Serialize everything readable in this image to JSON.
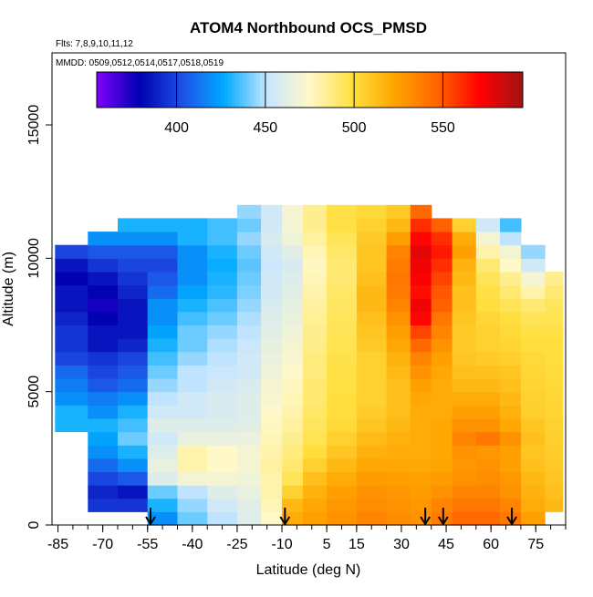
{
  "chart_data": {
    "type": "heatmap",
    "title": "ATOM4 Northbound OCS_PMSD",
    "annotations": [
      "Flts: 7,8,9,10,11,12",
      "MMDD: 0509,0512,0514,0517,0518,0519"
    ],
    "xlabel": "Latitude (deg N)",
    "ylabel": "Altitude (m)",
    "xlim": [
      -87,
      85
    ],
    "ylim": [
      0,
      17700
    ],
    "x_ticks": [
      -85,
      -70,
      -55,
      -40,
      -25,
      -10,
      5,
      15,
      30,
      45,
      60,
      75
    ],
    "x_tick_labels": [
      "-85",
      "-70",
      "-55",
      "-40",
      "-25",
      "-10",
      "5",
      "15",
      "30",
      "45",
      "60",
      "75"
    ],
    "y_ticks": [
      0,
      5000,
      10000,
      15000
    ],
    "y_tick_labels": [
      "0",
      "5000",
      "10000",
      "15000"
    ],
    "colorbar": {
      "range": [
        355,
        595
      ],
      "ticks": [
        400,
        450,
        500,
        550
      ],
      "tick_labels": [
        "400",
        "450",
        "500",
        "550"
      ],
      "colors": [
        "#7f00ff",
        "#0000b0",
        "#1e50e6",
        "#00aaff",
        "#c8e6ff",
        "#fff8c8",
        "#ffe040",
        "#ffa500",
        "#ff6400",
        "#ff0000",
        "#a01414"
      ]
    },
    "arrow_latitudes": [
      -54,
      -9,
      38,
      44,
      67
    ],
    "altitude_bins_m": [
      0,
      500,
      1000,
      1500,
      2000,
      2500,
      3000,
      3500,
      4000,
      4500,
      5000,
      5500,
      6000,
      6500,
      7000,
      7500,
      8000,
      8500,
      9000,
      9500,
      10000,
      10500,
      11000,
      11500,
      12000
    ],
    "columns": [
      {
        "lat": [
          -86,
          -75
        ],
        "alt": [
          3500,
          10500
        ],
        "values": [
          0,
          0,
          0,
          0,
          0,
          0,
          0,
          430,
          430,
          420,
          415,
          410,
          400,
          395,
          395,
          390,
          385,
          385,
          380,
          385,
          400,
          0,
          0,
          0,
          0
        ]
      },
      {
        "lat": [
          -75,
          -65
        ],
        "alt": [
          500,
          11200
        ],
        "values": [
          0,
          395,
          390,
          400,
          410,
          420,
          425,
          430,
          420,
          415,
          405,
          400,
          395,
          385,
          385,
          380,
          375,
          380,
          385,
          395,
          405,
          420,
          0,
          0,
          0
        ]
      },
      {
        "lat": [
          -65,
          -55
        ],
        "alt": [
          0,
          11800
        ],
        "values": [
          0,
          395,
          385,
          405,
          420,
          430,
          440,
          435,
          430,
          420,
          410,
          405,
          400,
          390,
          385,
          385,
          385,
          390,
          395,
          400,
          405,
          420,
          430,
          0,
          0
        ]
      },
      {
        "lat": [
          -55,
          -45
        ],
        "alt": [
          0,
          11800
        ],
        "values": [
          420,
          430,
          440,
          460,
          465,
          460,
          455,
          460,
          455,
          450,
          445,
          440,
          435,
          430,
          425,
          420,
          420,
          410,
          405,
          400,
          405,
          420,
          430,
          0,
          0
        ]
      },
      {
        "lat": [
          -45,
          -35
        ],
        "alt": [
          0,
          11800
        ],
        "values": [
          440,
          445,
          450,
          470,
          480,
          480,
          465,
          460,
          455,
          455,
          450,
          450,
          445,
          440,
          440,
          435,
          430,
          425,
          420,
          420,
          420,
          430,
          430,
          0,
          0
        ]
      },
      {
        "lat": [
          -35,
          -25
        ],
        "alt": [
          0,
          12100
        ],
        "values": [
          450,
          455,
          460,
          470,
          475,
          475,
          465,
          460,
          458,
          458,
          455,
          452,
          450,
          448,
          445,
          440,
          436,
          432,
          430,
          428,
          430,
          435,
          435,
          0,
          0
        ]
      },
      {
        "lat": [
          -25,
          -17
        ],
        "alt": [
          0,
          12400
        ],
        "values": [
          460,
          462,
          465,
          468,
          470,
          470,
          466,
          462,
          460,
          460,
          458,
          455,
          455,
          452,
          450,
          448,
          445,
          442,
          440,
          438,
          440,
          445,
          440,
          445,
          0
        ]
      },
      {
        "lat": [
          -17,
          -10
        ],
        "alt": [
          0,
          12400
        ],
        "values": [
          475,
          478,
          480,
          480,
          482,
          480,
          478,
          476,
          474,
          472,
          470,
          468,
          466,
          464,
          462,
          460,
          458,
          456,
          455,
          453,
          455,
          458,
          455,
          455,
          0
        ]
      },
      {
        "lat": [
          -10,
          -3
        ],
        "alt": [
          0,
          12400
        ],
        "values": [
          520,
          515,
          505,
          495,
          490,
          488,
          485,
          482,
          480,
          478,
          476,
          475,
          472,
          470,
          468,
          466,
          464,
          462,
          460,
          458,
          462,
          468,
          470,
          470,
          0
        ]
      },
      {
        "lat": [
          -3,
          5
        ],
        "alt": [
          0,
          12400
        ],
        "values": [
          525,
          522,
          518,
          512,
          505,
          500,
          496,
          494,
          492,
          490,
          490,
          488,
          488,
          486,
          485,
          484,
          482,
          480,
          478,
          476,
          478,
          482,
          485,
          485,
          0
        ]
      },
      {
        "lat": [
          5,
          15
        ],
        "alt": [
          0,
          12400
        ],
        "values": [
          530,
          528,
          525,
          520,
          515,
          510,
          505,
          502,
          500,
          500,
          498,
          498,
          497,
          496,
          495,
          494,
          493,
          492,
          490,
          490,
          492,
          495,
          498,
          498,
          0
        ]
      },
      {
        "lat": [
          15,
          25
        ],
        "alt": [
          0,
          12400
        ],
        "values": [
          535,
          532,
          530,
          526,
          522,
          518,
          514,
          510,
          507,
          505,
          505,
          505,
          505,
          508,
          510,
          512,
          515,
          515,
          512,
          510,
          510,
          508,
          505,
          502,
          0
        ]
      },
      {
        "lat": [
          25,
          33
        ],
        "alt": [
          0,
          12400
        ],
        "values": [
          532,
          530,
          528,
          525,
          522,
          520,
          518,
          515,
          513,
          512,
          512,
          515,
          518,
          522,
          525,
          530,
          535,
          538,
          540,
          538,
          535,
          525,
          515,
          508,
          0
        ]
      },
      {
        "lat": [
          33,
          40
        ],
        "alt": [
          0,
          12400
        ],
        "values": [
          530,
          528,
          526,
          524,
          522,
          520,
          520,
          520,
          520,
          522,
          525,
          530,
          535,
          545,
          555,
          570,
          575,
          568,
          572,
          575,
          578,
          570,
          560,
          545,
          0
        ]
      },
      {
        "lat": [
          40,
          47
        ],
        "alt": [
          0,
          12100
        ],
        "values": [
          538,
          535,
          530,
          526,
          523,
          522,
          522,
          522,
          520,
          520,
          520,
          522,
          525,
          530,
          535,
          540,
          548,
          550,
          555,
          560,
          565,
          560,
          548,
          0,
          0
        ]
      },
      {
        "lat": [
          47,
          55
        ],
        "alt": [
          0,
          11800
        ],
        "values": [
          545,
          540,
          535,
          530,
          528,
          530,
          535,
          530,
          525,
          520,
          515,
          512,
          510,
          508,
          508,
          510,
          512,
          512,
          515,
          518,
          525,
          520,
          505,
          0,
          0
        ]
      },
      {
        "lat": [
          55,
          63
        ],
        "alt": [
          0,
          11800
        ],
        "values": [
          545,
          540,
          535,
          532,
          530,
          528,
          540,
          530,
          525,
          520,
          515,
          512,
          508,
          505,
          505,
          503,
          500,
          498,
          495,
          490,
          480,
          470,
          455,
          0,
          0
        ]
      },
      {
        "lat": [
          63,
          70
        ],
        "alt": [
          0,
          11500
        ],
        "values": [
          540,
          535,
          530,
          528,
          525,
          525,
          530,
          522,
          518,
          515,
          512,
          510,
          506,
          504,
          502,
          500,
          495,
          490,
          485,
          475,
          470,
          450,
          435,
          0,
          0
        ]
      },
      {
        "lat": [
          70,
          78
        ],
        "alt": [
          0,
          10500
        ],
        "values": [
          525,
          520,
          518,
          515,
          512,
          510,
          512,
          510,
          506,
          505,
          504,
          503,
          502,
          500,
          498,
          495,
          490,
          480,
          470,
          455,
          445,
          0,
          0,
          0,
          0
        ]
      },
      {
        "lat": [
          78,
          84
        ],
        "alt": [
          500,
          9500
        ],
        "values": [
          0,
          515,
          512,
          510,
          508,
          507,
          506,
          505,
          504,
          503,
          502,
          501,
          500,
          500,
          498,
          496,
          494,
          490,
          485,
          0,
          0,
          0,
          0,
          0,
          0
        ]
      }
    ]
  }
}
